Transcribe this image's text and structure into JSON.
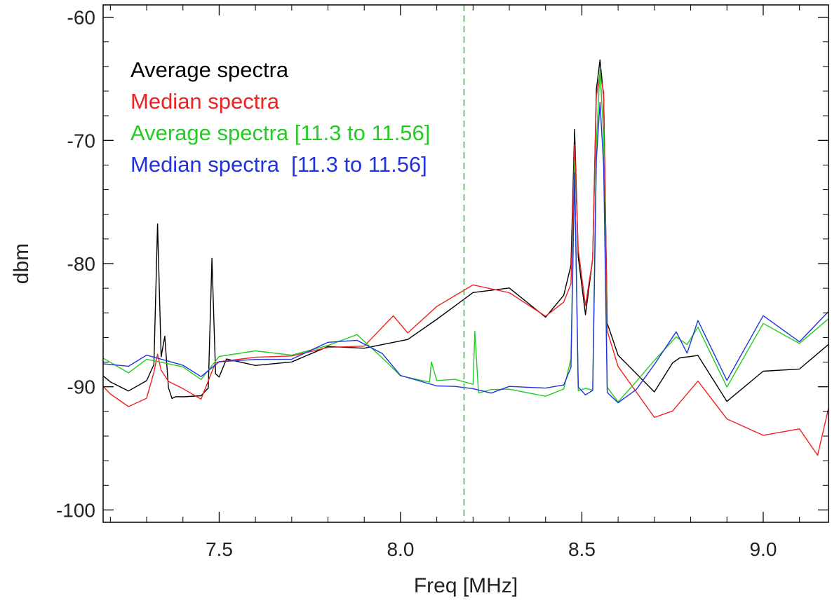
{
  "chart_data": {
    "type": "line",
    "title": "",
    "xlabel": "Freq [MHz]",
    "ylabel": "dbm",
    "xlim": [
      7.18,
      9.18
    ],
    "ylim": [
      -101,
      -59
    ],
    "xticks": [
      7.5,
      8.0,
      8.5,
      9.0
    ],
    "xtick_labels": [
      "7.5",
      "8.0",
      "8.5",
      "9.0"
    ],
    "yticks": [
      -60,
      -70,
      -80,
      -90,
      -100
    ],
    "ytick_labels": [
      "-60",
      "-70",
      "-80",
      "-90",
      "-100"
    ],
    "grid": false,
    "legend_placement": "top-left",
    "vline": {
      "x": 8.175,
      "style": "dashed",
      "color": "#22bb22"
    },
    "series": [
      {
        "name": "Average spectra",
        "color": "#000000",
        "x": [
          7.18,
          7.2,
          7.25,
          7.3,
          7.32,
          7.33,
          7.34,
          7.35,
          7.36,
          7.37,
          7.38,
          7.4,
          7.45,
          7.47,
          7.48,
          7.49,
          7.5,
          7.52,
          7.6,
          7.7,
          7.8,
          7.9,
          8.0,
          8.02,
          8.1,
          8.2,
          8.3,
          8.4,
          8.45,
          8.47,
          8.48,
          8.49,
          8.51,
          8.53,
          8.54,
          8.55,
          8.56,
          8.57,
          8.6,
          8.7,
          8.75,
          8.77,
          8.82,
          8.9,
          9.0,
          9.1,
          9.18
        ],
        "y": [
          -89,
          -90,
          -90.5,
          -90,
          -88,
          -76.5,
          -88,
          -86,
          -90,
          -90.5,
          -91,
          -91,
          -90.5,
          -90,
          -80,
          -89,
          -89,
          -88,
          -88,
          -88,
          -87,
          -87,
          -86,
          -86,
          -84,
          -82,
          -82,
          -84.5,
          -83,
          -80,
          -69,
          -80,
          -84,
          -80,
          -66,
          -63.5,
          -66,
          -85,
          -87,
          -90,
          -88,
          -88,
          -87.5,
          -91.5,
          -89,
          -88.5,
          -87
        ]
      },
      {
        "name": "Median spectra",
        "color": "#ee2222",
        "x": [
          7.18,
          7.2,
          7.25,
          7.3,
          7.32,
          7.33,
          7.34,
          7.36,
          7.4,
          7.45,
          7.48,
          7.49,
          7.5,
          7.6,
          7.7,
          7.8,
          7.9,
          7.98,
          8.02,
          8.1,
          8.2,
          8.3,
          8.4,
          8.45,
          8.47,
          8.48,
          8.49,
          8.51,
          8.53,
          8.54,
          8.55,
          8.56,
          8.57,
          8.6,
          8.7,
          8.75,
          8.82,
          8.9,
          9.0,
          9.1,
          9.15,
          9.18
        ],
        "y": [
          -90,
          -91,
          -91.5,
          -91,
          -89,
          -87.5,
          -89,
          -89.5,
          -90,
          -90.5,
          -89,
          -87.5,
          -88,
          -88,
          -88,
          -87,
          -86.5,
          -84.5,
          -86,
          -83.5,
          -82,
          -82.5,
          -84,
          -83,
          -82,
          -70.5,
          -79,
          -83.5,
          -80,
          -66,
          -64.5,
          -66,
          -86,
          -88,
          -92.5,
          -92.5,
          -89,
          -92.5,
          -93.5,
          -93,
          -95.5,
          -91.5
        ]
      },
      {
        "name": "Average spectra [11.3 to 11.56]",
        "color": "#22cc22",
        "x": [
          7.18,
          7.25,
          7.3,
          7.4,
          7.45,
          7.5,
          7.6,
          7.7,
          7.8,
          7.88,
          7.95,
          8.0,
          8.08,
          8.085,
          8.1,
          8.15,
          8.2,
          8.205,
          8.215,
          8.25,
          8.3,
          8.4,
          8.45,
          8.47,
          8.48,
          8.49,
          8.51,
          8.53,
          8.54,
          8.55,
          8.56,
          8.57,
          8.6,
          8.65,
          8.7,
          8.76,
          8.79,
          8.82,
          8.9,
          9.0,
          9.1,
          9.18
        ],
        "y": [
          -88,
          -88.5,
          -87.5,
          -88.5,
          -89.5,
          -88,
          -87.5,
          -87.5,
          -86.5,
          -86,
          -87.5,
          -89.5,
          -89.5,
          -88,
          -90,
          -89.5,
          -90,
          -85.5,
          -90,
          -90,
          -90,
          -90.5,
          -90,
          -88,
          -71.5,
          -90,
          -90.5,
          -90,
          -70,
          -64.5,
          -70,
          -90,
          -91.5,
          -90,
          -88,
          -85.5,
          -87,
          -85,
          -89.5,
          -84.5,
          -86.5,
          -84
        ]
      },
      {
        "name": "Median spectra  [11.3 to 11.56]",
        "color": "#2233dd",
        "x": [
          7.18,
          7.25,
          7.3,
          7.4,
          7.45,
          7.5,
          7.6,
          7.7,
          7.8,
          7.88,
          7.95,
          8.0,
          8.1,
          8.15,
          8.2,
          8.25,
          8.3,
          8.4,
          8.45,
          8.47,
          8.48,
          8.49,
          8.51,
          8.53,
          8.54,
          8.55,
          8.56,
          8.57,
          8.6,
          8.65,
          8.7,
          8.76,
          8.79,
          8.82,
          8.9,
          9.0,
          9.1,
          9.18
        ],
        "y": [
          -88,
          -88.5,
          -87.5,
          -88.5,
          -89.5,
          -88,
          -87.5,
          -87.5,
          -86.5,
          -86,
          -87.5,
          -89.5,
          -90,
          -89.5,
          -90,
          -90,
          -90,
          -90.5,
          -90,
          -88,
          -72.5,
          -90,
          -90.5,
          -90,
          -72,
          -67,
          -72,
          -90,
          -91.5,
          -90,
          -88,
          -85.5,
          -87,
          -85,
          -89.5,
          -84.5,
          -86.5,
          -84
        ]
      }
    ]
  }
}
